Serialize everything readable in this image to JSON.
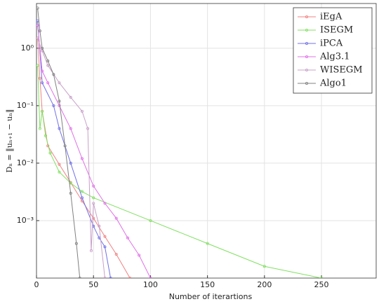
{
  "chart_data": {
    "type": "line",
    "xlabel": "Number of iterartions",
    "ylabel": "Dₙ = ‖uₙ₊₁ − uₙ‖",
    "xlim": [
      0,
      298
    ],
    "xticks": [
      0,
      50,
      100,
      150,
      200,
      250
    ],
    "ylim": [
      0.0001,
      6
    ],
    "yticks": [
      {
        "value": 0.001,
        "label": "10⁻³"
      },
      {
        "value": 0.01,
        "label": "10⁻²"
      },
      {
        "value": 0.1,
        "label": "10⁻¹"
      },
      {
        "value": 1,
        "label": "10⁰"
      }
    ],
    "log_y": true,
    "grid": true,
    "legend": "top-right",
    "series": [
      {
        "name": "iEgA",
        "color": "#f08080",
        "x": [
          1,
          3,
          5,
          10,
          20,
          30,
          40,
          50,
          60,
          70,
          82
        ],
        "values": [
          1.5,
          0.3,
          0.08,
          0.02,
          0.0095,
          0.0046,
          0.0022,
          0.0011,
          0.00053,
          0.00026,
          0.0001
        ]
      },
      {
        "name": "ISEGM",
        "color": "#80e060",
        "x": [
          1,
          3,
          5,
          8,
          12,
          20,
          30,
          40,
          50,
          100,
          150,
          200,
          250
        ],
        "values": [
          0.5,
          0.04,
          0.08,
          0.03,
          0.015,
          0.007,
          0.0045,
          0.0032,
          0.0025,
          0.001,
          0.0004,
          0.00016,
          0.0001
        ]
      },
      {
        "name": "iPCA",
        "color": "#7070e8",
        "x": [
          1,
          5,
          15,
          20,
          30,
          40,
          50,
          55,
          60,
          65
        ],
        "values": [
          3,
          0.25,
          0.1,
          0.04,
          0.01,
          0.0025,
          0.0008,
          0.0005,
          0.00035,
          0.0001
        ]
      },
      {
        "name": "Alg3.1",
        "color": "#e070e8",
        "x": [
          1,
          5,
          10,
          20,
          30,
          40,
          50,
          60,
          70,
          80,
          90,
          100
        ],
        "values": [
          2.5,
          0.4,
          0.25,
          0.1,
          0.04,
          0.012,
          0.004,
          0.002,
          0.0011,
          0.0005,
          0.00025,
          0.0001
        ]
      },
      {
        "name": "WISEGM",
        "color": "#c8a0c8",
        "x": [
          1,
          5,
          10,
          20,
          30,
          40,
          45,
          48,
          50,
          55,
          60
        ],
        "values": [
          1.5,
          0.9,
          0.5,
          0.25,
          0.14,
          0.08,
          0.04,
          0.0003,
          0.002,
          0.0008,
          0.0001
        ]
      },
      {
        "name": "Algo1",
        "color": "#808080",
        "x": [
          1,
          3,
          5,
          10,
          15,
          20,
          25,
          30,
          35,
          38
        ],
        "values": [
          5,
          2,
          1,
          0.6,
          0.35,
          0.12,
          0.02,
          0.003,
          0.0004,
          0.0001
        ]
      }
    ]
  }
}
